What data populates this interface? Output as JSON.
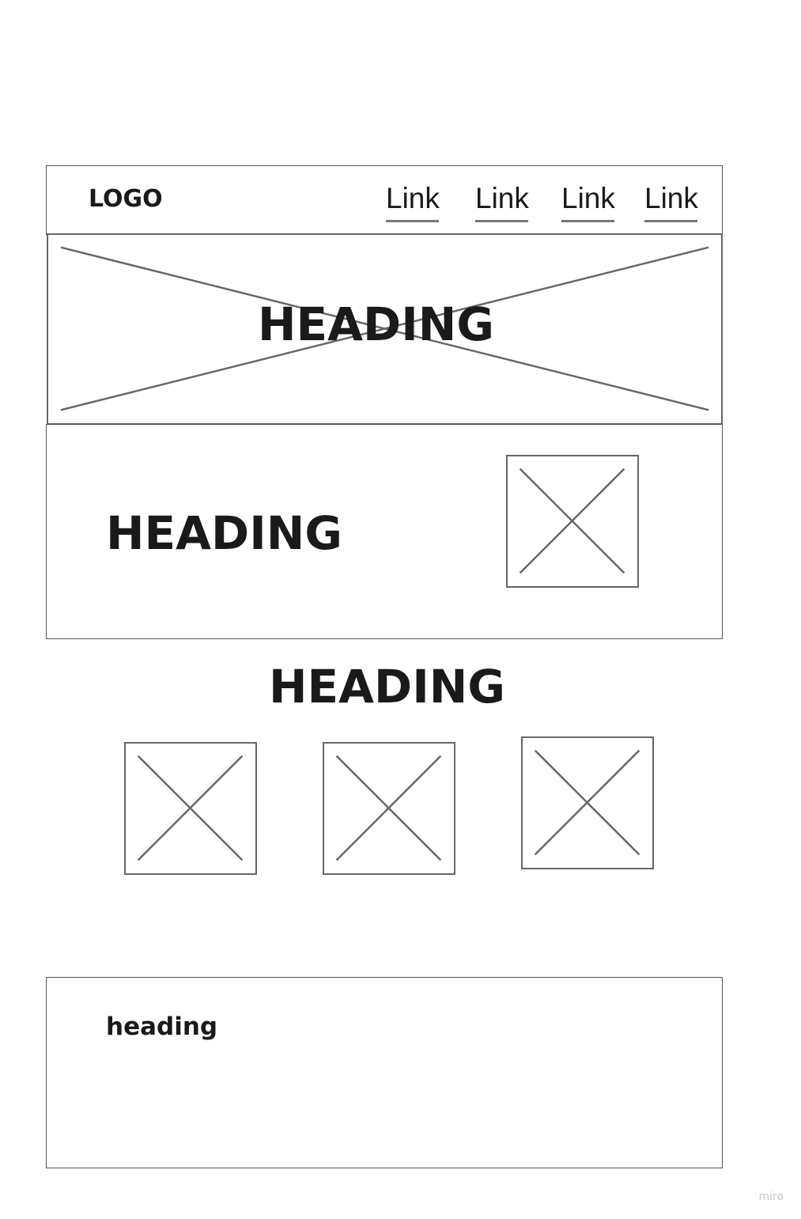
{
  "header": {
    "logo": "LOGO",
    "links": [
      "Link",
      "Link",
      "Link",
      "Link"
    ]
  },
  "hero": {
    "heading": "HEADING"
  },
  "feature": {
    "heading": "HEADING"
  },
  "gallery": {
    "heading": "HEADING"
  },
  "footer": {
    "heading": "heading"
  },
  "watermark": "miro"
}
